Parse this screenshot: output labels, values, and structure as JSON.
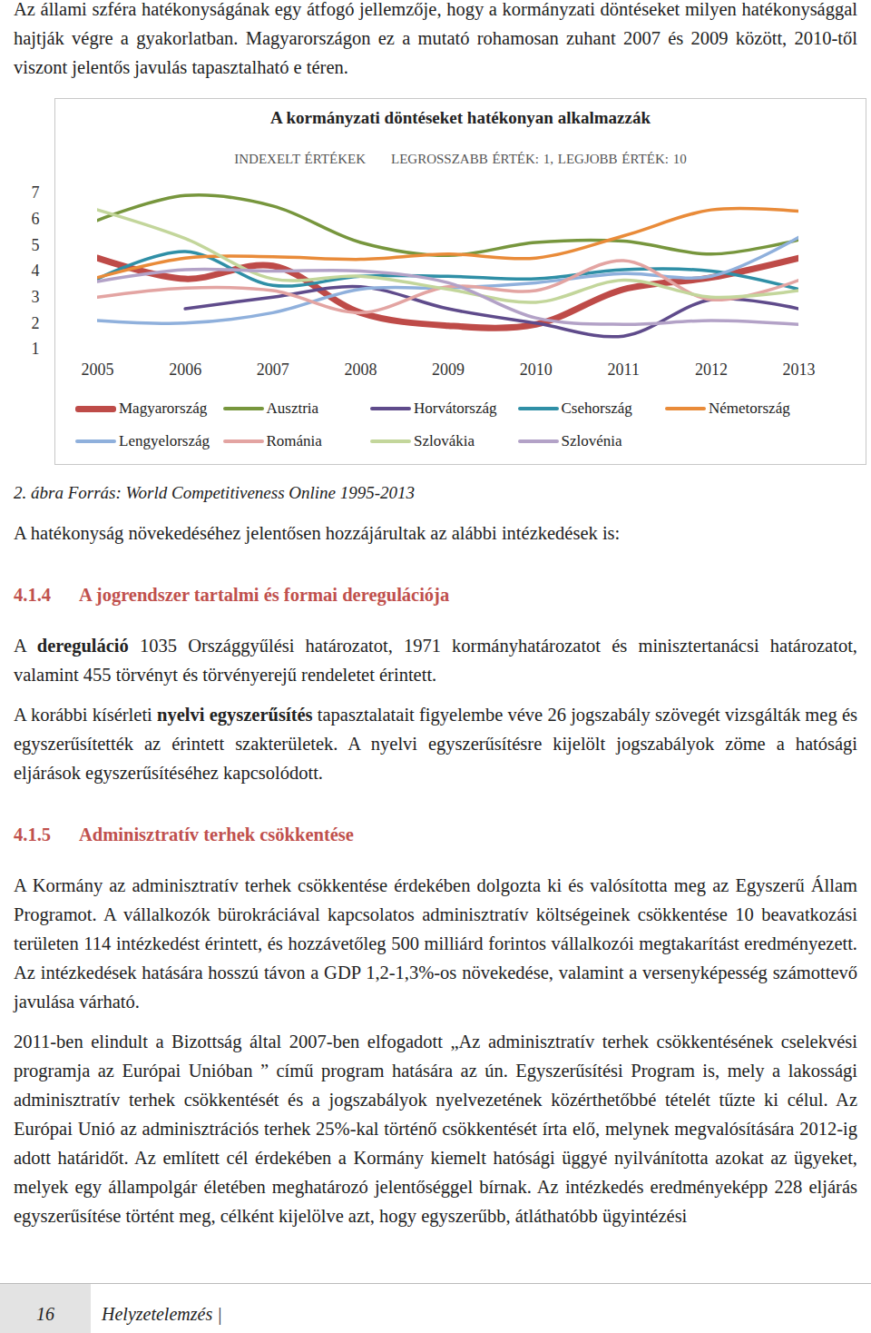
{
  "intro": "Az állami szféra hatékonyságának egy átfogó jellemzője, hogy a kormányzati döntéseket milyen hatékonysággal hajtják végre a gyakorlatban. Magyarországon ez a mutató rohamosan zuhant 2007 és 2009 között, 2010-től viszont jelentős javulás tapasztalható e téren.",
  "chart_data": {
    "type": "line",
    "title": "A kormányzati döntéseket hatékonyan alkalmazzák",
    "subtitle": [
      "INDEXELT ÉRTÉKEK",
      "LEGROSSZABB ÉRTÉK: 1, LEGJOBB ÉRTÉK: 10"
    ],
    "x": [
      2005,
      2006,
      2007,
      2008,
      2009,
      2010,
      2011,
      2012,
      2013
    ],
    "xlim": [
      2005,
      2013
    ],
    "xticks": [
      2005,
      2006,
      2007,
      2008,
      2009,
      2010,
      2011,
      2012,
      2013
    ],
    "ylim": [
      1,
      7
    ],
    "yticks": [
      1,
      2,
      3,
      4,
      5,
      6,
      7
    ],
    "grid": false,
    "legend": "bottom",
    "series": [
      {
        "name": "Magyarország",
        "color": "#be4b48",
        "line_style": "bold",
        "values": [
          4.5,
          3.7,
          4.2,
          2.4,
          1.9,
          1.95,
          3.3,
          3.75,
          4.5
        ]
      },
      {
        "name": "Ausztria",
        "color": "#77963d",
        "line_style": "solid",
        "values": [
          5.95,
          6.9,
          6.5,
          5.1,
          4.6,
          5.1,
          5.15,
          4.65,
          5.2
        ]
      },
      {
        "name": "Horvátország",
        "color": "#5f4b8b",
        "line_style": "solid",
        "values": [
          null,
          2.55,
          3.0,
          3.4,
          2.55,
          2.0,
          1.5,
          2.9,
          2.55
        ]
      },
      {
        "name": "Csehország",
        "color": "#2f8fa6",
        "line_style": "solid",
        "values": [
          3.7,
          4.75,
          3.45,
          3.8,
          3.8,
          3.7,
          4.05,
          4.0,
          3.3
        ]
      },
      {
        "name": "Németország",
        "color": "#e98b39",
        "line_style": "solid",
        "values": [
          3.75,
          4.5,
          4.55,
          4.45,
          4.65,
          4.5,
          5.35,
          6.35,
          6.3
        ]
      },
      {
        "name": "Lengyelország",
        "color": "#8fb0dc",
        "line_style": "solid",
        "values": [
          2.1,
          2.0,
          2.4,
          3.3,
          3.35,
          3.55,
          3.9,
          3.8,
          5.3
        ]
      },
      {
        "name": "Románia",
        "color": "#e3a4a2",
        "line_style": "solid",
        "values": [
          3.0,
          3.35,
          3.25,
          2.4,
          3.4,
          3.25,
          4.4,
          2.9,
          3.65
        ]
      },
      {
        "name": "Szlovákia",
        "color": "#c3d69b",
        "line_style": "solid",
        "values": [
          6.35,
          5.25,
          3.7,
          3.8,
          3.3,
          2.8,
          3.65,
          3.0,
          3.25
        ]
      },
      {
        "name": "Szlovénia",
        "color": "#b3a2c7",
        "line_style": "solid",
        "values": [
          3.6,
          4.05,
          4.0,
          4.0,
          3.55,
          2.2,
          1.95,
          2.1,
          1.95
        ]
      }
    ]
  },
  "caption": "2. ábra Forrás: World Competitiveness Online 1995-2013",
  "body": [
    {
      "kind": "paragraph",
      "runs": [
        {
          "text": "A hatékonyság növekedéséhez jelentősen hozzájárultak az alábbi intézkedések is:"
        }
      ]
    },
    {
      "kind": "heading",
      "number": "4.1.4",
      "text": "A jogrendszer tartalmi és formai deregulációja"
    },
    {
      "kind": "paragraph",
      "runs": [
        {
          "text": "A "
        },
        {
          "text": "dereguláció",
          "bold": true
        },
        {
          "text": " 1035 Országgyűlési határozatot, 1971 kormányhatározatot és minisztertanácsi határozatot, valamint 455 törvényt és törvényerejű rendeletet érintett."
        }
      ]
    },
    {
      "kind": "paragraph",
      "runs": [
        {
          "text": "A korábbi kísérleti "
        },
        {
          "text": "nyelvi egyszerűsítés",
          "bold": true
        },
        {
          "text": " tapasztalatait figyelembe véve 26 jogszabály szövegét vizsgálták meg és egyszerűsítették az érintett szakterületek. A nyelvi egyszerűsítésre kijelölt jogszabályok zöme a hatósági eljárások egyszerűsítéséhez kapcsolódott."
        }
      ]
    },
    {
      "kind": "heading",
      "number": "4.1.5",
      "text": "Adminisztratív terhek csökkentése"
    },
    {
      "kind": "paragraph",
      "runs": [
        {
          "text": "A Kormány az adminisztratív terhek csökkentése érdekében dolgozta ki és valósította meg az Egyszerű Állam Programot. A vállalkozók bürokráciával kapcsolatos adminisztratív költségeinek csökkentése 10 beavatkozási területen 114 intézkedést érintett, és hozzávetőleg 500 milliárd forintos vállalkozói megtakarítást eredményezett. Az intézkedések hatására hosszú távon a GDP 1,2-1,3%-os növekedése, valamint a versenyképesség számottevő javulása várható."
        }
      ]
    },
    {
      "kind": "paragraph",
      "runs": [
        {
          "text": "2011-ben elindult a Bizottság által 2007-ben elfogadott „Az adminisztratív terhek csökkentésének cselekvési programja az Európai Unióban ” című program hatására az ún. Egyszerűsítési Program is, mely a lakossági adminisztratív terhek csökkentését és a jogszabályok nyelvezetének közérthetőbbé tételét tűzte ki célul. Az Európai Unió az adminisztrációs terhek 25%-kal történő csökkentését írta elő, melynek megvalósítására 2012-ig adott határidőt. Az említett cél érdekében a Kormány kiemelt hatósági üggyé nyilvánította azokat az ügyeket, melyek egy állampolgár életében meghatározó jelentőséggel bírnak. Az intézkedés eredményeképp 228 eljárás egyszerűsítése történt meg, célként kijelölve azt, hogy egyszerűbb, átláthatóbb ügyintézési"
        }
      ]
    }
  ],
  "footer": {
    "page": 16,
    "text": "Helyzetelemzés |"
  }
}
